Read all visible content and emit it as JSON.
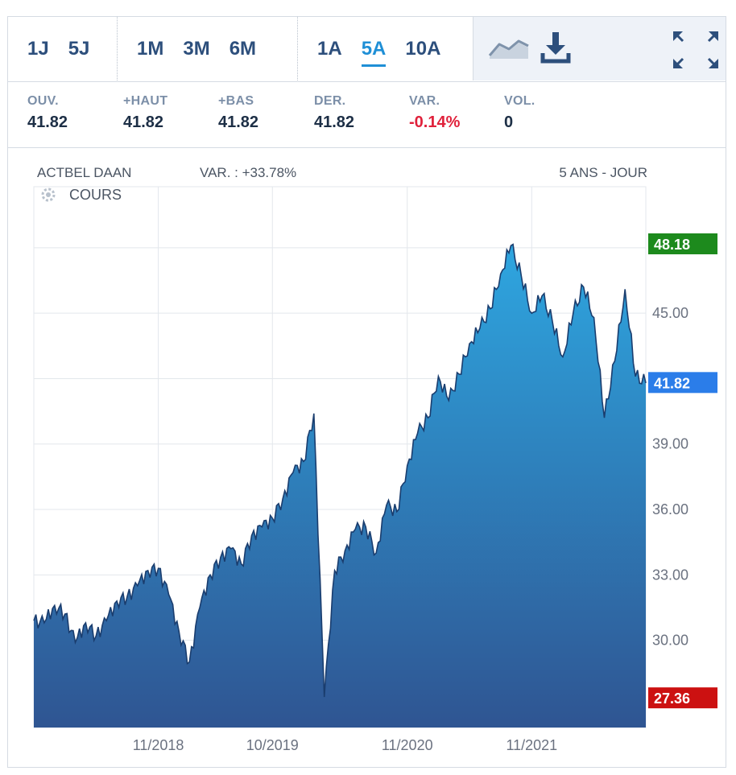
{
  "toolbar": {
    "ranges_a": [
      "1J",
      "5J"
    ],
    "ranges_b": [
      "1M",
      "3M",
      "6M"
    ],
    "ranges_c": [
      "1A",
      "5A",
      "10A"
    ],
    "active_range": "5A",
    "icons": [
      "line-chart-icon",
      "download-icon",
      "expand-icon"
    ]
  },
  "stats": [
    {
      "label": "OUV.",
      "value": "41.82"
    },
    {
      "label": "+HAUT",
      "value": "41.82"
    },
    {
      "label": "+BAS",
      "value": "41.82"
    },
    {
      "label": "DER.",
      "value": "41.82"
    },
    {
      "label": "VAR.",
      "value": "-0.14%"
    },
    {
      "label": "VOL.",
      "value": "0"
    }
  ],
  "header": {
    "name": "ACTBEL DAAN",
    "change": "VAR. : +33.78%",
    "period": "5 ANS - JOUR",
    "series_label": "COURS"
  },
  "colors": {
    "high": "#1d8a1d",
    "low": "#cc1111",
    "last": "#2b7de9",
    "line": "#1a3d6e",
    "fill_top": "#2ea6e0",
    "fill_bottom": "#2f5592",
    "negative": "#e0213b",
    "active": "#1f8fd6"
  },
  "chart_data": {
    "type": "area",
    "title": "",
    "xlabel": "",
    "ylabel": "",
    "ylim": [
      26.0,
      50.8
    ],
    "yticks": [
      "30.00",
      "33.00",
      "36.00",
      "39.00",
      "45.00"
    ],
    "xticks": [
      "11/2018",
      "10/2019",
      "11/2020",
      "11/2021"
    ],
    "high_label": "48.18",
    "last_label": "41.82",
    "low_label": "27.36",
    "grid": true,
    "series": [
      {
        "name": "COURS",
        "x": [
          "2017-11",
          "2017-12",
          "2018-01",
          "2018-02",
          "2018-03",
          "2018-04",
          "2018-05",
          "2018-06",
          "2018-07",
          "2018-08",
          "2018-09",
          "2018-10",
          "2018-11",
          "2018-12",
          "2019-01",
          "2019-02",
          "2019-03",
          "2019-04",
          "2019-05",
          "2019-06",
          "2019-07",
          "2019-08",
          "2019-09",
          "2019-10",
          "2019-11",
          "2019-12",
          "2020-01",
          "2020-02",
          "2020-03",
          "2020-04",
          "2020-05",
          "2020-06",
          "2020-07",
          "2020-08",
          "2020-09",
          "2020-10",
          "2020-11",
          "2020-12",
          "2021-01",
          "2021-02",
          "2021-03",
          "2021-04",
          "2021-05",
          "2021-06",
          "2021-07",
          "2021-08",
          "2021-09",
          "2021-10",
          "2021-11",
          "2021-12",
          "2022-01",
          "2022-02",
          "2022-03",
          "2022-04",
          "2022-05",
          "2022-06",
          "2022-07",
          "2022-08",
          "2022-09",
          "2022-10"
        ],
        "y": [
          30.9,
          30.8,
          31.6,
          31.2,
          29.9,
          30.8,
          30.2,
          30.9,
          31.8,
          32.0,
          32.5,
          33.2,
          33.3,
          32.1,
          30.4,
          29.0,
          31.5,
          33.0,
          33.8,
          34.2,
          33.5,
          34.8,
          35.2,
          35.6,
          36.5,
          37.7,
          38.2,
          40.4,
          27.4,
          33.2,
          34.1,
          35.1,
          35.2,
          34.0,
          36.2,
          35.9,
          38.0,
          39.5,
          40.2,
          42.1,
          41.0,
          42.2,
          43.6,
          44.3,
          45.2,
          46.8,
          48.1,
          46.7,
          45.0,
          45.8,
          44.6,
          43.0,
          45.0,
          46.2,
          44.8,
          40.2,
          42.8,
          46.1,
          42.1,
          41.8
        ]
      }
    ]
  }
}
